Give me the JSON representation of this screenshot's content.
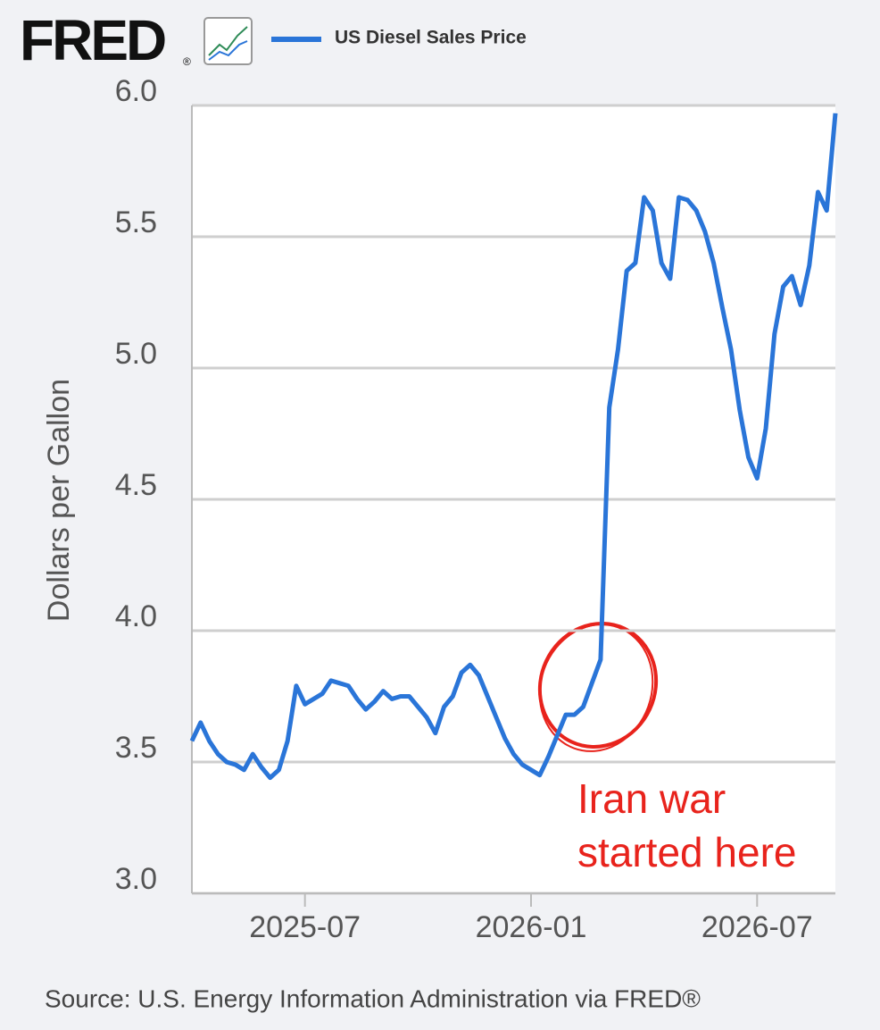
{
  "chart_data": {
    "type": "line",
    "logo": "FRED",
    "logo_mark": "®",
    "y_label": "Dollars per Gallon",
    "source": "Source: U.S. Energy Information Administration via FRED®",
    "annotation": [
      "Iran war",
      "started here"
    ],
    "annotation_color": "#e8231c",
    "categories": [
      null,
      null,
      null,
      null,
      null,
      null,
      null,
      null,
      null,
      null,
      null,
      null,
      null,
      "2025-07",
      null,
      null,
      null,
      null,
      null,
      null,
      null,
      null,
      null,
      null,
      null,
      null,
      null,
      null,
      null,
      null,
      null,
      null,
      null,
      null,
      null,
      null,
      null,
      null,
      null,
      "2026-01",
      null,
      null,
      null,
      null,
      null,
      null,
      null,
      null,
      null,
      null,
      null,
      null,
      null,
      null,
      null,
      null,
      null,
      null,
      null,
      null,
      null,
      null,
      null,
      null,
      null,
      "2026-07",
      null,
      null,
      null,
      null,
      null,
      null,
      null,
      null,
      null
    ],
    "series": [
      {
        "name": "US Diesel Sales Price",
        "color": "#2a75d8",
        "values": [
          3.58,
          3.65,
          3.58,
          3.53,
          3.5,
          3.49,
          3.47,
          3.53,
          3.48,
          3.44,
          3.47,
          3.58,
          3.79,
          3.72,
          3.74,
          3.76,
          3.81,
          3.8,
          3.79,
          3.74,
          3.7,
          3.73,
          3.77,
          3.74,
          3.75,
          3.75,
          3.71,
          3.67,
          3.61,
          3.71,
          3.75,
          3.84,
          3.87,
          3.83,
          3.75,
          3.67,
          3.59,
          3.53,
          3.49,
          3.47,
          3.45,
          3.52,
          3.6,
          3.68,
          3.68,
          3.71,
          3.8,
          3.89,
          4.85,
          5.07,
          5.37,
          5.4,
          5.65,
          5.6,
          5.4,
          5.34,
          5.65,
          5.64,
          5.6,
          5.52,
          5.4,
          5.23,
          5.07,
          4.84,
          4.66,
          4.58,
          4.77,
          5.13,
          5.31,
          5.35,
          5.24,
          5.39,
          5.67,
          5.6,
          5.97
        ]
      }
    ],
    "ylim": [
      3,
      6
    ],
    "yticks": [
      {
        "value": 3,
        "label": "3.0"
      },
      3.5,
      {
        "value": 4,
        "label": "4.0"
      },
      4.5,
      {
        "value": 5,
        "label": "5.0"
      },
      5.5,
      {
        "value": 6,
        "label": "6.0"
      }
    ],
    "grid": true
  }
}
